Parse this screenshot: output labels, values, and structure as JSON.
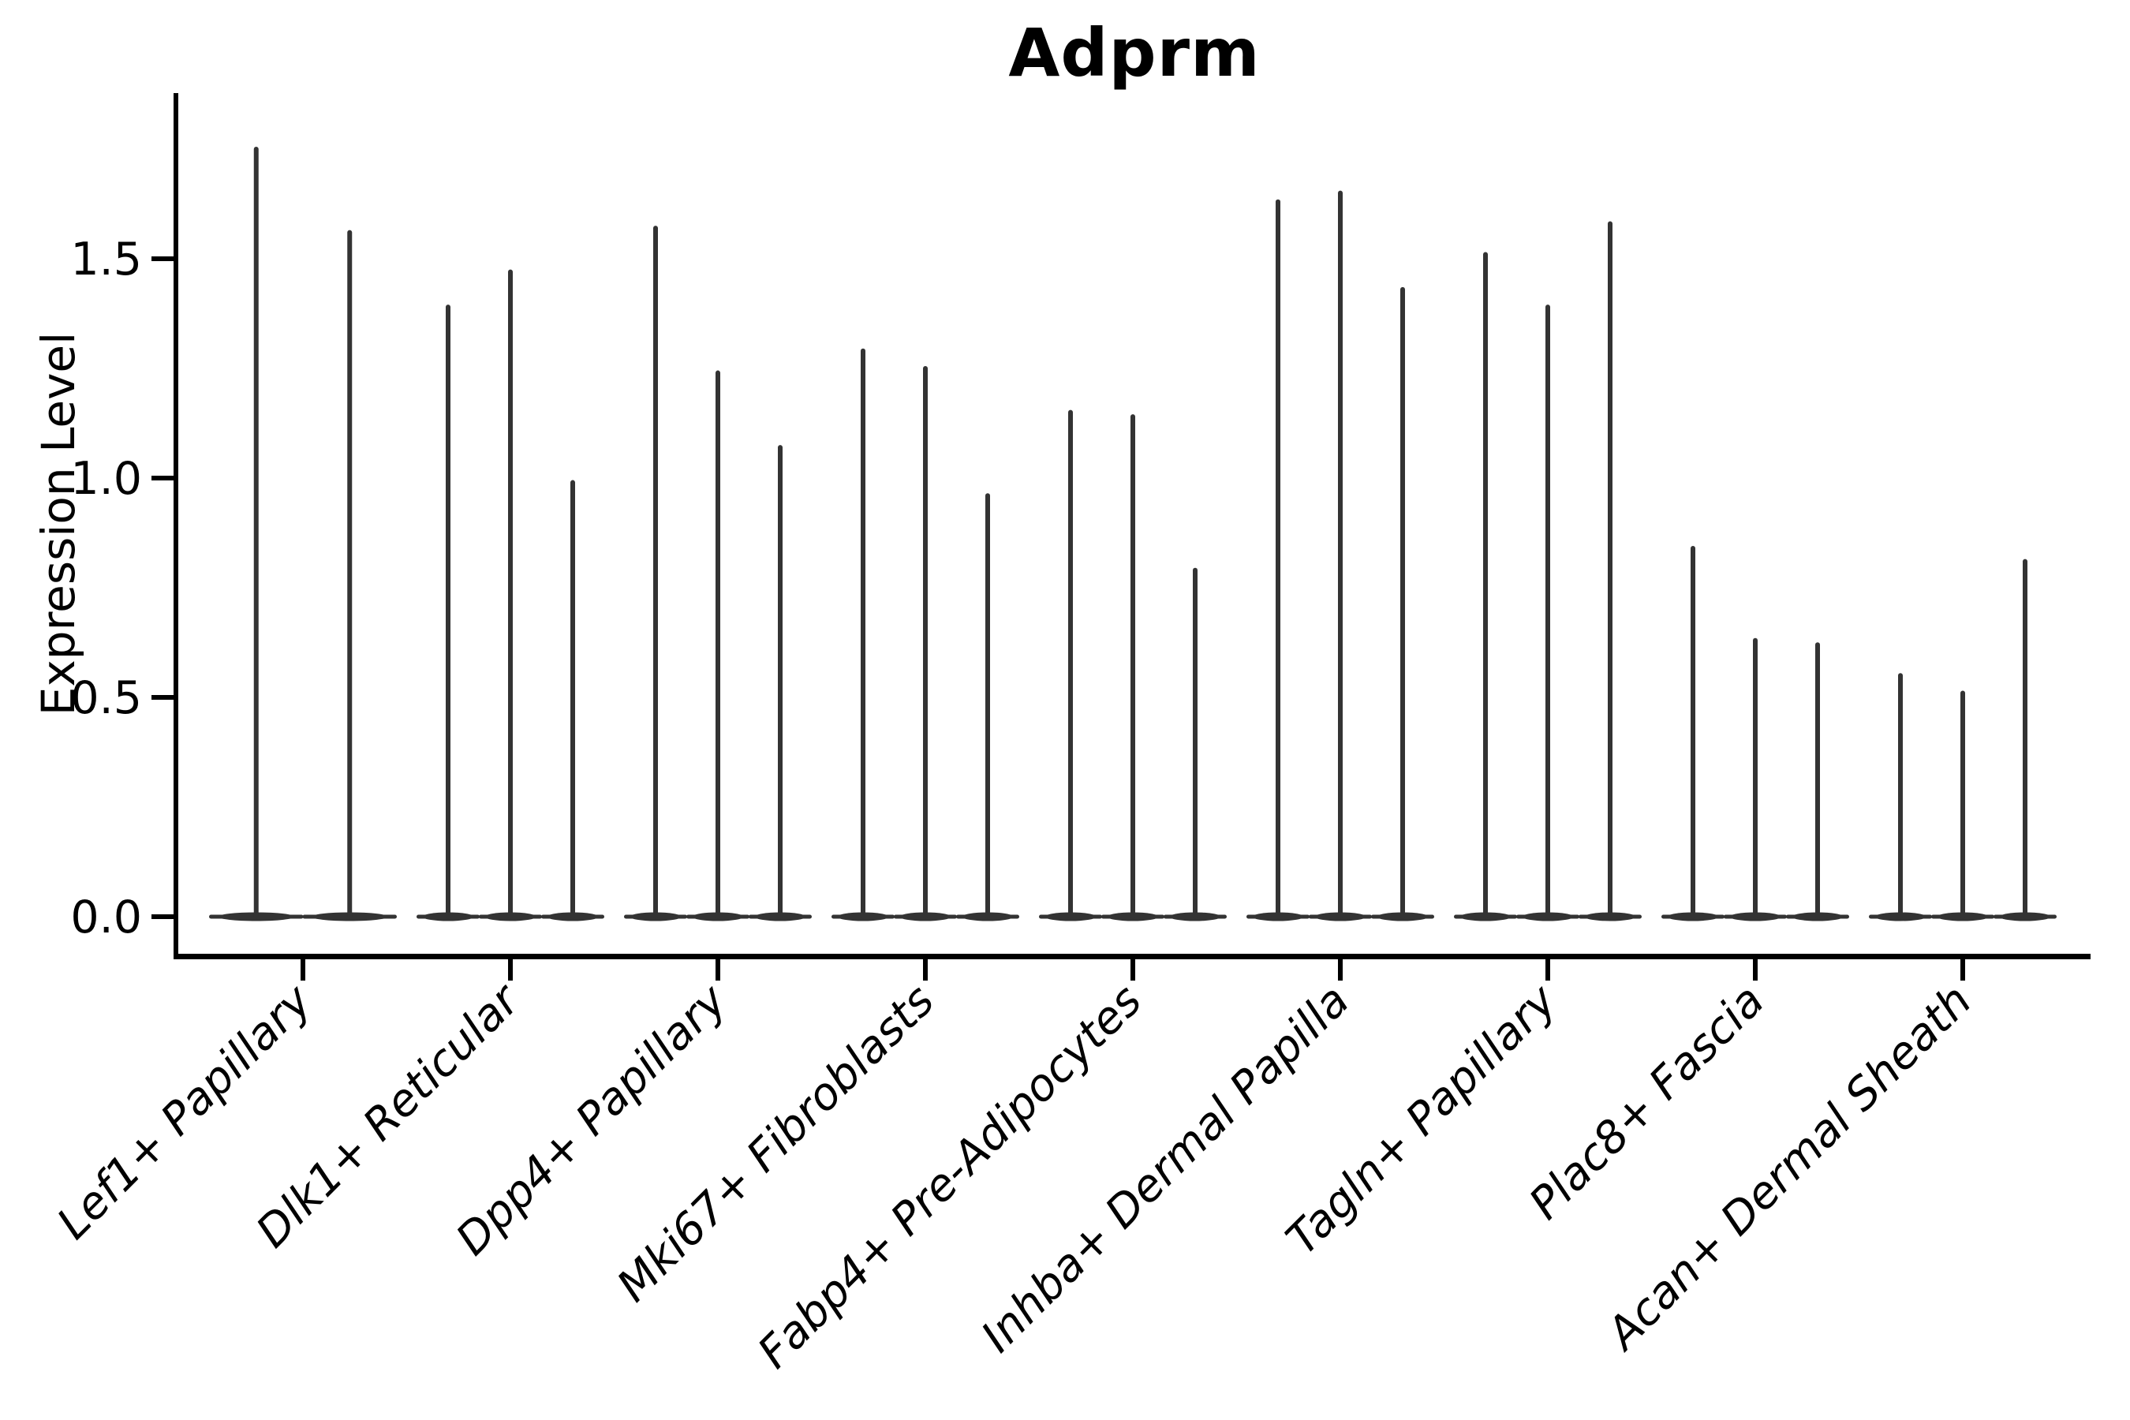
{
  "chart_data": {
    "type": "violin",
    "title": "Adprm",
    "ylabel": "Expression Level",
    "xlabel": "",
    "yticks": [
      "0.0",
      "0.5",
      "1.0",
      "1.5"
    ],
    "ylim": [
      -0.09,
      1.88
    ],
    "grid": false,
    "legend_position": "none",
    "violin_color": "#333333",
    "axis_color": "#000000",
    "baseline_value": 0.0,
    "categories": [
      "Lef1+ Papillary",
      "Dlk1+ Reticular",
      "Dpp4+ Papillary",
      "Mki67+ Fibroblasts",
      "Fabp4+ Pre-Adipocytes",
      "Inhba+ Dermal Papilla",
      "Tagln+ Papillary",
      "Plac8+ Fascia",
      "Acan+ Dermal Sheath"
    ],
    "violin_peaks_per_category": [
      [
        1.75,
        1.56
      ],
      [
        1.39,
        1.47,
        0.99
      ],
      [
        1.57,
        1.24,
        1.07
      ],
      [
        1.29,
        1.25,
        0.96
      ],
      [
        1.15,
        1.14,
        0.79
      ],
      [
        1.63,
        1.65,
        1.43
      ],
      [
        1.51,
        1.39,
        1.58
      ],
      [
        0.84,
        0.63,
        0.62
      ],
      [
        0.55,
        0.51,
        0.81
      ]
    ]
  }
}
